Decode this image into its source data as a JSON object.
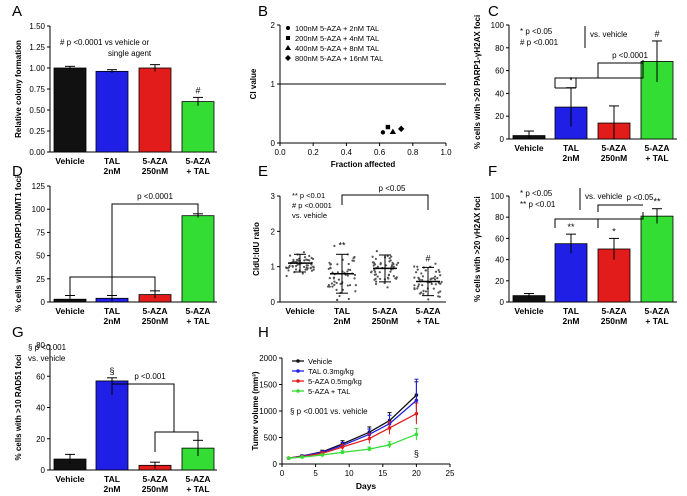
{
  "figure_title": "Multi-panel figure: 5-AZA and TAL combination effects",
  "chart_data": [
    {
      "panel": "A",
      "type": "bar",
      "categories": [
        [
          "Vehicle"
        ],
        [
          "TAL",
          "2nM"
        ],
        [
          "5-AZA",
          "250nM"
        ],
        [
          "5-AZA",
          "+ TAL"
        ]
      ],
      "values": [
        1.0,
        0.96,
        1.0,
        0.6
      ],
      "errors": [
        0.02,
        0.02,
        0.04,
        0.05
      ],
      "colors": [
        "#111111",
        "#1f1fe6",
        "#e21b1b",
        "#33dd33"
      ],
      "ylabel": "Relative colony formation",
      "ylim": [
        0,
        1.5
      ],
      "yticks": [
        "0.00",
        "0.25",
        "0.50",
        "0.75",
        "1.00",
        "1.25",
        "1.50"
      ],
      "bar_marks": [
        "",
        "",
        "",
        "#"
      ],
      "annotations": [
        "# p <0.0001 vs vehicle or",
        "single agent"
      ]
    },
    {
      "panel": "B",
      "type": "scatter",
      "xlabel": "Fraction affected",
      "ylabel": "CI value",
      "xlim": [
        0,
        1.0
      ],
      "ylim": [
        0,
        2
      ],
      "xticks": [
        "0.0",
        "0.2",
        "0.4",
        "0.6",
        "0.8",
        "1.0"
      ],
      "yticks": [
        "0",
        "1",
        "2"
      ],
      "reference_line": 1,
      "series": [
        {
          "name": "100nM 5-AZA + 2nM TAL",
          "marker": "circle",
          "x": 0.62,
          "y": 0.18
        },
        {
          "name": "200nM 5-AZA + 4nM TAL",
          "marker": "square",
          "x": 0.65,
          "y": 0.27
        },
        {
          "name": "400nM 5-AZA + 8nM TAL",
          "marker": "triangle",
          "x": 0.68,
          "y": 0.19
        },
        {
          "name": "800nM 5-AZA + 16nM TAL",
          "marker": "diamond",
          "x": 0.73,
          "y": 0.24
        }
      ]
    },
    {
      "panel": "C",
      "type": "bar",
      "categories": [
        [
          "Vehicle"
        ],
        [
          "TAL",
          "2nM"
        ],
        [
          "5-AZA",
          "250nM"
        ],
        [
          "5-AZA",
          "+ TAL"
        ]
      ],
      "values": [
        3,
        28,
        14,
        68
      ],
      "errors": [
        4,
        17,
        15,
        18
      ],
      "colors": [
        "#111111",
        "#1f1fe6",
        "#e21b1b",
        "#33dd33"
      ],
      "ylabel": "% cells with >20 PARP1-γH2AX foci",
      "ylim": [
        0,
        100
      ],
      "yticks": [
        "0",
        "20",
        "40",
        "60",
        "80",
        "100"
      ],
      "bar_marks": [
        "",
        "*",
        "",
        "#"
      ],
      "annotations": [
        "* p <0.05",
        "# p <0.001",
        "vs. vehicle"
      ],
      "bracket_label": "p <0.0001"
    },
    {
      "panel": "D",
      "type": "bar",
      "categories": [
        [
          "Vehicle"
        ],
        [
          "TAL",
          "2nM"
        ],
        [
          "5-AZA",
          "250nM"
        ],
        [
          "5-AZA",
          "+ TAL"
        ]
      ],
      "values": [
        3,
        4,
        8,
        93
      ],
      "errors": [
        4,
        3,
        4,
        2
      ],
      "colors": [
        "#111111",
        "#1f1fe6",
        "#e21b1b",
        "#33dd33"
      ],
      "ylabel": "% cells with >20 PARP1-DNMT1 foci",
      "ylim": [
        0,
        100
      ],
      "yticks": [
        "0",
        "25",
        "50",
        "75",
        "100",
        "125"
      ],
      "bar_marks": [
        "",
        "",
        "",
        ""
      ],
      "bracket_label": "p <0.0001"
    },
    {
      "panel": "E",
      "type": "scatter",
      "categories": [
        [
          "Vehicle"
        ],
        [
          "TAL",
          "2nM"
        ],
        [
          "5-AZA",
          "250nM"
        ],
        [
          "5-AZA",
          "+ TAL"
        ]
      ],
      "means": [
        1.1,
        0.8,
        0.95,
        0.58
      ],
      "sd": [
        0.25,
        0.55,
        0.38,
        0.4
      ],
      "ylabel": "CldU:IdU ratio",
      "ylim": [
        0,
        3
      ],
      "yticks": [
        "0",
        "1",
        "2",
        "3"
      ],
      "bar_marks": [
        "",
        "**",
        "",
        "#"
      ],
      "annotations": [
        "** p <0.01",
        "# p <0.0001",
        "vs. vehicle"
      ],
      "bracket_label": "p <0.05"
    },
    {
      "panel": "F",
      "type": "bar",
      "categories": [
        [
          "Vehicle"
        ],
        [
          "TAL",
          "2nM"
        ],
        [
          "5-AZA",
          "250nM"
        ],
        [
          "5-AZA",
          "+ TAL"
        ]
      ],
      "values": [
        6,
        55,
        50,
        81
      ],
      "errors": [
        2,
        9,
        10,
        7
      ],
      "colors": [
        "#111111",
        "#1f1fe6",
        "#e21b1b",
        "#33dd33"
      ],
      "ylabel": "% cells with >20 γH2AX foci",
      "ylim": [
        0,
        100
      ],
      "yticks": [
        "0",
        "20",
        "40",
        "60",
        "80",
        "100"
      ],
      "bar_marks": [
        "",
        "**",
        "*",
        "**"
      ],
      "annotations": [
        "* p <0.05",
        "** p <0.01",
        "vs. vehicle"
      ],
      "bracket_label": "p <0.05"
    },
    {
      "panel": "G",
      "type": "bar",
      "categories": [
        [
          "Vehicle"
        ],
        [
          "TAL",
          "2nM"
        ],
        [
          "5-AZA",
          "250nM"
        ],
        [
          "5-AZA",
          "+ TAL"
        ]
      ],
      "values": [
        7,
        57,
        3,
        14
      ],
      "errors": [
        3,
        2,
        2,
        5
      ],
      "colors": [
        "#111111",
        "#1f1fe6",
        "#e21b1b",
        "#33dd33"
      ],
      "ylabel": "% cells with >10 RAD51 foci",
      "ylim": [
        0,
        80
      ],
      "yticks": [
        "0",
        "20",
        "40",
        "60",
        "80"
      ],
      "bar_marks": [
        "",
        "§",
        "",
        ""
      ],
      "annotations": [
        "§ p <0.001",
        "vs. vehicle"
      ],
      "bracket_label": "p <0.001"
    },
    {
      "panel": "H",
      "type": "line",
      "x": [
        1,
        3,
        6,
        9,
        13,
        16,
        20
      ],
      "xlabel": "Days",
      "ylabel": "Tumor volume (mm³)",
      "xlim": [
        0,
        25
      ],
      "ylim": [
        0,
        2000
      ],
      "xticks": [
        "0",
        "5",
        "10",
        "15",
        "20",
        "25"
      ],
      "yticks": [
        "0",
        "500",
        "1000",
        "1500",
        "2000"
      ],
      "series": [
        {
          "name": "Vehicle",
          "color": "#111111",
          "marker": "circle",
          "values": [
            110,
            150,
            230,
            380,
            600,
            820,
            1300
          ],
          "errors": [
            10,
            20,
            30,
            60,
            100,
            150,
            250
          ]
        },
        {
          "name": "TAL 0.3mg/kg",
          "color": "#1f1fe6",
          "marker": "square",
          "values": [
            110,
            150,
            220,
            350,
            560,
            760,
            1200
          ],
          "errors": [
            10,
            20,
            30,
            60,
            100,
            160,
            400
          ]
        },
        {
          "name": "5-AZA 0.5mg/kg",
          "color": "#e21b1b",
          "marker": "triangle",
          "values": [
            110,
            140,
            200,
            320,
            480,
            680,
            950
          ],
          "errors": [
            10,
            15,
            30,
            50,
            90,
            120,
            200
          ]
        },
        {
          "name": "5-AZA + TAL",
          "color": "#33dd33",
          "marker": "diamond",
          "values": [
            110,
            130,
            170,
            220,
            280,
            360,
            560
          ],
          "errors": [
            10,
            15,
            20,
            30,
            40,
            60,
            110
          ]
        }
      ],
      "end_mark": "§",
      "annotations": [
        "§ p <0.001 vs. vehicle"
      ]
    }
  ]
}
